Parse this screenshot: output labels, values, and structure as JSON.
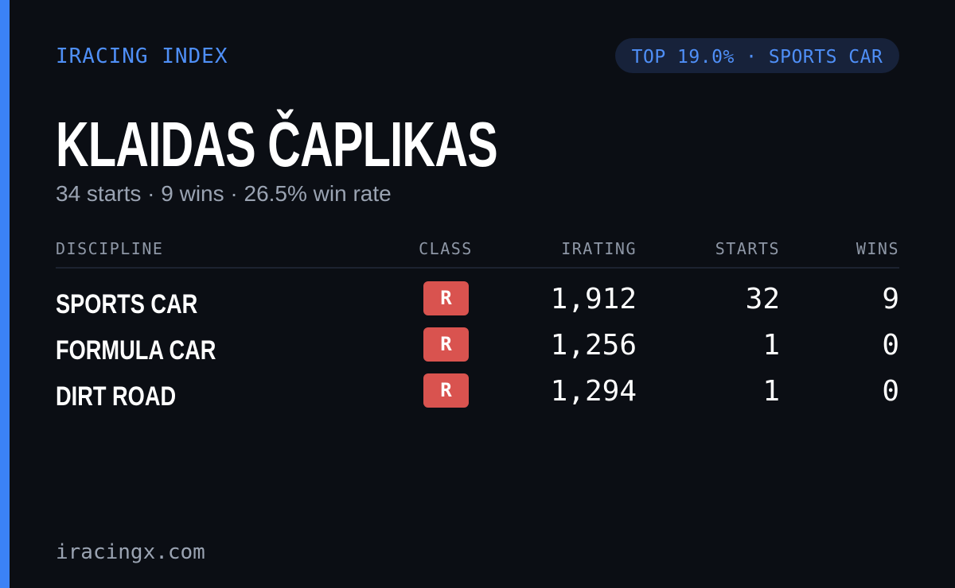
{
  "header": {
    "brand": "IRACING INDEX",
    "badge": "TOP 19.0% · SPORTS CAR"
  },
  "driver": {
    "name": "KLAIDAS ČAPLIKAS",
    "summary": "34 starts · 9 wins · 26.5% win rate"
  },
  "table": {
    "columns": [
      "DISCIPLINE",
      "CLASS",
      "IRATING",
      "STARTS",
      "WINS"
    ],
    "rows": [
      [
        "SPORTS CAR",
        "R",
        "1,912",
        "32",
        "9"
      ],
      [
        "FORMULA CAR",
        "R",
        "1,256",
        "1",
        "0"
      ],
      [
        "DIRT ROAD",
        "R",
        "1,294",
        "1",
        "0"
      ]
    ]
  },
  "footer": {
    "site": "iracingx.com"
  }
}
